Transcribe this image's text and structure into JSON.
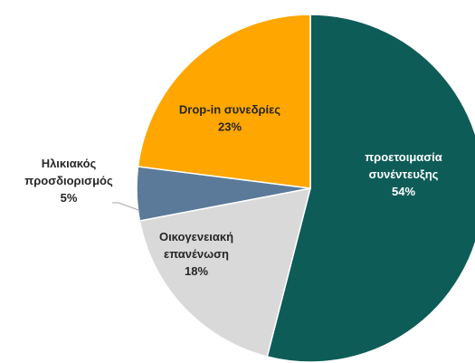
{
  "chart_data": {
    "type": "pie",
    "title": "",
    "slices": [
      {
        "label_lines": [
          "προετοιμασία",
          "συνέντευξης"
        ],
        "percent_label": "54%",
        "value": 54,
        "color": "#0d5c57",
        "label_color": "#ffffff"
      },
      {
        "label_lines": [
          "Οικογενειακή",
          "επανένωση"
        ],
        "percent_label": "18%",
        "value": 18,
        "color": "#d9d9d9",
        "label_color": "#262626"
      },
      {
        "label_lines": [
          "Ηλικιακός",
          "προσδιορισμός"
        ],
        "percent_label": "5%",
        "value": 5,
        "color": "#5b7a99",
        "label_color": "#262626"
      },
      {
        "label_lines": [
          "Drop-in συνεδρίες"
        ],
        "percent_label": "23%",
        "value": 23,
        "color": "#ffa600",
        "label_color": "#262626"
      }
    ],
    "legend": "none",
    "start_angle_deg": 0,
    "direction": "clockwise"
  }
}
